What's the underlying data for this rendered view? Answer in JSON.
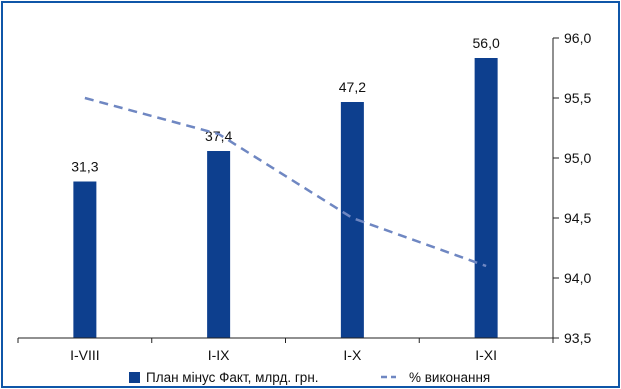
{
  "chart_data": {
    "type": "bar",
    "categories": [
      "I-VIII",
      "I-IX",
      "I-X",
      "I-XI"
    ],
    "series": [
      {
        "name": "План мінус Факт, млрд. грн.",
        "type": "bar",
        "values": [
          31.3,
          37.4,
          47.2,
          56.0
        ],
        "labels": [
          "31,3",
          "37,4",
          "47,2",
          "56,0"
        ],
        "color": "#0d3f8e"
      },
      {
        "name": "% виконання",
        "type": "line",
        "axis": "right",
        "values": [
          95.5,
          95.2,
          94.5,
          94.1
        ],
        "color": "#6f87c2",
        "dash": true
      }
    ],
    "y_right": {
      "ticks": [
        "96,0",
        "95,5",
        "95,0",
        "94,5",
        "94,0",
        "93,5"
      ],
      "range": [
        93.5,
        96.0
      ]
    },
    "bar_axis_range": [
      0,
      60
    ],
    "legend_position": "bottom",
    "frame_color": "#0f56a8"
  }
}
